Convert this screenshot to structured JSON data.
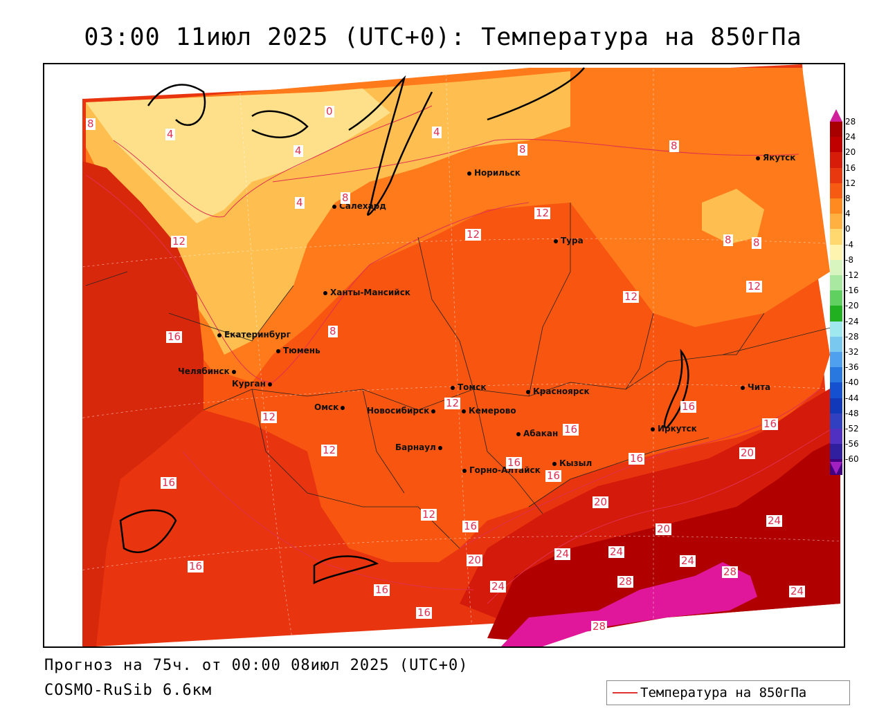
{
  "title": "03:00 11июл 2025 (UTC+0): Температура на 850гПа",
  "colors": {
    "c28plus": "#e0179a",
    "c24": "#b00000",
    "c20": "#d41a0a",
    "c16": "#e8350f",
    "c12": "#f75510",
    "c8": "#ff7a1a",
    "c4": "#ffbf50",
    "c0": "#ffe08a",
    "contour": "#e03050"
  },
  "cities": [
    {
      "name": "Норильск"
    },
    {
      "name": "Якутск"
    },
    {
      "name": "Салехард"
    },
    {
      "name": "Тура"
    },
    {
      "name": "Ханты-Мансийск"
    },
    {
      "name": "Екатеринбург"
    },
    {
      "name": "Тюмень"
    },
    {
      "name": "Челябинск"
    },
    {
      "name": "Курган"
    },
    {
      "name": "Томск"
    },
    {
      "name": "Красноярск"
    },
    {
      "name": "Чита"
    },
    {
      "name": "Омск"
    },
    {
      "name": "Новосибирск"
    },
    {
      "name": "Кемерово"
    },
    {
      "name": "Абакан"
    },
    {
      "name": "Иркутск"
    },
    {
      "name": "Барнаул"
    },
    {
      "name": "Кызыл"
    },
    {
      "name": "Горно-Алтайск"
    }
  ],
  "contour_labels": [
    "0",
    "4",
    "4",
    "4",
    "4",
    "8",
    "8",
    "8",
    "8",
    "8",
    "8",
    "8",
    "12",
    "12",
    "12",
    "12",
    "12",
    "12",
    "12",
    "12",
    "12",
    "16",
    "16",
    "16",
    "16",
    "16",
    "16",
    "16",
    "16",
    "16",
    "16",
    "16",
    "16",
    "20",
    "20",
    "20",
    "20",
    "24",
    "24",
    "24",
    "24",
    "24",
    "24",
    "28",
    "28",
    "28"
  ],
  "colorbar": {
    "ticks": [
      "28",
      "24",
      "20",
      "16",
      "12",
      "8",
      "4",
      "0",
      "-4",
      "-8",
      "-12",
      "-16",
      "-20",
      "-24",
      "-28",
      "-32",
      "-36",
      "-40",
      "-44",
      "-48",
      "-52",
      "-56",
      "-60"
    ],
    "colors": [
      "#a80000",
      "#c00000",
      "#d81c0a",
      "#e8380f",
      "#f75a12",
      "#ff8a20",
      "#ffb040",
      "#ffd870",
      "#fff3b0",
      "#d8f5c0",
      "#a8e8a0",
      "#60d060",
      "#20b020",
      "#a0e8f0",
      "#78c8f0",
      "#50a0f0",
      "#2878e0",
      "#1450d0",
      "#1038b8",
      "#3040c0",
      "#5030c0",
      "#3020a0",
      "#400080"
    ],
    "top_arrow_color": "#d0209a",
    "bottom_arrow_color": "#a020c0"
  },
  "footer": {
    "forecast": "Прогноз на 75ч. от 00:00 08июл 2025 (UTC+0)",
    "model": "COSMO-RuSib 6.6км"
  },
  "legend": {
    "label": "Температура на 850гПа",
    "line_color": "#e03030"
  }
}
